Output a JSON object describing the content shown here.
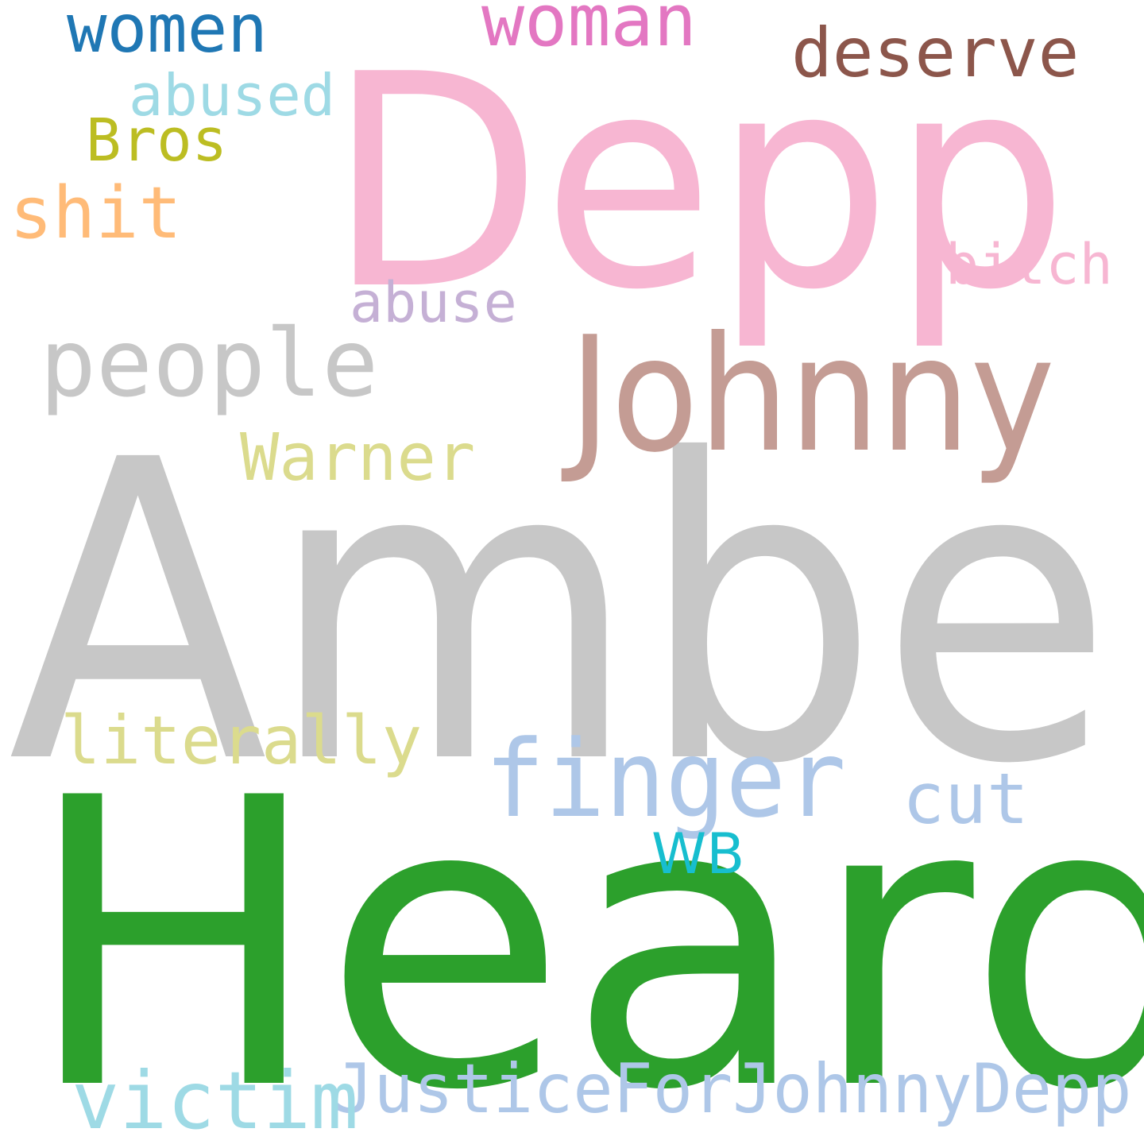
{
  "words": {
    "amber": {
      "text": "Amber",
      "color": "#c7c7c7"
    },
    "heard": {
      "text": "Heard",
      "color": "#2ca02c"
    },
    "depp": {
      "text": "Depp",
      "color": "#f7b6d2"
    },
    "johnny": {
      "text": "Johnny",
      "color": "#c49c94"
    },
    "people": {
      "text": "people",
      "color": "#c7c7c7"
    },
    "finger": {
      "text": "finger",
      "color": "#aec7e8"
    },
    "justice": {
      "text": "JusticeForJohnnyDepp",
      "color": "#aec7e8"
    },
    "victim": {
      "text": "victim",
      "color": "#9edae5"
    },
    "literally": {
      "text": "literally",
      "color": "#dbdb8d"
    },
    "cut": {
      "text": "cut",
      "color": "#aec7e8"
    },
    "wb": {
      "text": "WB",
      "color": "#17becf"
    },
    "warner": {
      "text": "Warner",
      "color": "#dbdb8d"
    },
    "abuse": {
      "text": "abuse",
      "color": "#c5b0d5"
    },
    "bitch": {
      "text": "bitch",
      "color": "#f7b6d2"
    },
    "shit": {
      "text": "shit",
      "color": "#ffbb78"
    },
    "bros": {
      "text": "Bros",
      "color": "#bcbd22"
    },
    "abused": {
      "text": "abused",
      "color": "#9edae5"
    },
    "women": {
      "text": "women",
      "color": "#1f77b4"
    },
    "woman": {
      "text": "woman",
      "color": "#e377c2"
    },
    "deserve": {
      "text": "deserve",
      "color": "#8c564b"
    }
  }
}
